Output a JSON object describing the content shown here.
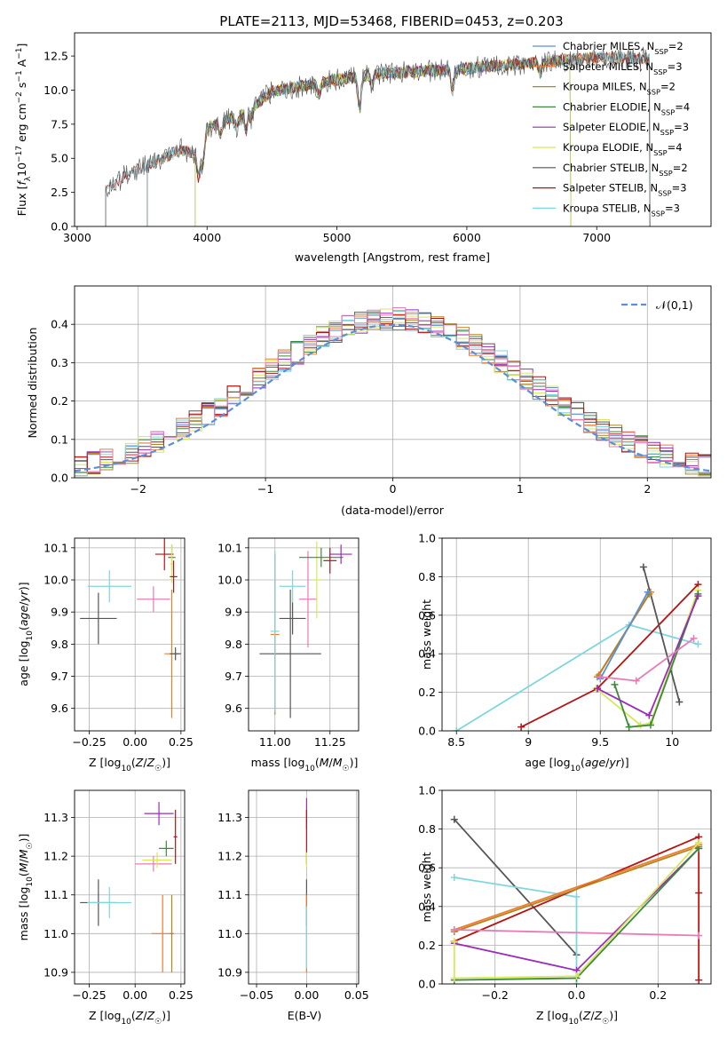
{
  "figure": {
    "title": "PLATE=2113, MJD=53468, FIBERID=0453, z=0.203"
  },
  "colors": {
    "chabrier_miles": "#5b8fd8",
    "salpeter_miles": "#f07b2c",
    "kroupa_miles": "#b5841e",
    "chabrier_elodie": "#3b8a3b",
    "salpeter_elodie": "#9a2bbd",
    "kroupa_elodie": "#d6e85a",
    "chabrier_stelib": "#555555",
    "salpeter_stelib": "#b41414",
    "kroupa_stelib": "#7fd6dc",
    "pink": "#e77bb8",
    "grid": "#b0b0b0",
    "normal_curve": "#5b8fd8"
  },
  "chart_data": [
    {
      "id": "spectrum",
      "type": "line",
      "xlabel": "wavelength [Angstrom, rest frame]",
      "xlim": [
        2980,
        7880
      ],
      "ylim": [
        0,
        14.2
      ],
      "xticks": [
        3000,
        4000,
        5000,
        6000,
        7000
      ],
      "yticks": [
        0.0,
        2.5,
        5.0,
        7.5,
        10.0,
        12.5
      ],
      "grid": false,
      "legend_position": "right",
      "legend": [
        {
          "series": "chabrier_miles",
          "label": "Chabrier MILES, N",
          "sub": "SSP",
          "tail": "=2"
        },
        {
          "series": "salpeter_miles",
          "label": "Salpeter MILES, N",
          "sub": "SSP",
          "tail": "=3"
        },
        {
          "series": "kroupa_miles",
          "label": "Kroupa MILES, N",
          "sub": "SSP",
          "tail": "=2"
        },
        {
          "series": "chabrier_elodie",
          "label": "Chabrier ELODIE, N",
          "sub": "SSP",
          "tail": "=4"
        },
        {
          "series": "salpeter_elodie",
          "label": "Salpeter ELODIE, N",
          "sub": "SSP",
          "tail": "=3"
        },
        {
          "series": "kroupa_elodie",
          "label": "Kroupa ELODIE, N",
          "sub": "SSP",
          "tail": "=4"
        },
        {
          "series": "chabrier_stelib",
          "label": "Chabrier STELIB, N",
          "sub": "SSP",
          "tail": "=2"
        },
        {
          "series": "salpeter_stelib",
          "label": "Salpeter STELIB, N",
          "sub": "SSP",
          "tail": "=3"
        },
        {
          "series": "kroupa_stelib",
          "label": "Kroupa STELIB, N",
          "sub": "SSP",
          "tail": "=3"
        }
      ],
      "continuum": [
        [
          3200,
          2.6
        ],
        [
          3400,
          3.9
        ],
        [
          3600,
          4.8
        ],
        [
          3800,
          5.6
        ],
        [
          3950,
          5.2
        ],
        [
          4000,
          7.2
        ],
        [
          4300,
          8.4
        ],
        [
          4500,
          9.9
        ],
        [
          4900,
          10.6
        ],
        [
          5300,
          11.2
        ],
        [
          5900,
          11.5
        ],
        [
          6500,
          12.0
        ],
        [
          7000,
          12.4
        ],
        [
          7500,
          12.3
        ],
        [
          7880,
          12.2
        ]
      ],
      "dips": [
        [
          3934,
          1.6
        ],
        [
          3968,
          1.3
        ],
        [
          4102,
          0.8
        ],
        [
          4227,
          0.8
        ],
        [
          4300,
          1.4
        ],
        [
          4340,
          0.8
        ],
        [
          4861,
          0.9
        ],
        [
          5175,
          2.4
        ],
        [
          5270,
          0.8
        ],
        [
          5890,
          1.5
        ],
        [
          6563,
          0.8
        ]
      ],
      "series_extent": {
        "chabrier_miles": [
          3540,
          7410
        ],
        "salpeter_miles": [
          3540,
          7410
        ],
        "kroupa_miles": [
          3540,
          7410
        ],
        "chabrier_elodie": [
          3910,
          6800
        ],
        "salpeter_elodie": [
          3910,
          6800
        ],
        "kroupa_elodie": [
          3910,
          6800
        ],
        "chabrier_stelib": [
          3220,
          7410
        ],
        "salpeter_stelib": [
          3220,
          7410
        ],
        "kroupa_stelib": [
          3220,
          7410
        ]
      },
      "y_label_parts": [
        "Flux [f",
        "λ",
        "10",
        "−17",
        " erg cm",
        "−2",
        " s",
        "−1",
        " A",
        "−1",
        "]"
      ]
    },
    {
      "id": "residuals",
      "type": "histogram",
      "xlabel": "(data-model)/error",
      "ylabel": "Normed distribution",
      "xlim": [
        -2.5,
        2.5
      ],
      "ylim": [
        0,
        0.5
      ],
      "xticks": [
        -2,
        -1,
        0,
        1,
        2
      ],
      "xtick_labels": [
        "−2",
        "−1",
        "0",
        "1",
        "2"
      ],
      "yticks": [
        0.0,
        0.1,
        0.2,
        0.3,
        0.4
      ],
      "grid": true,
      "bin_width": 0.1,
      "legend_label": "𝒩(0,1)",
      "legend_position": "top-right",
      "normal": {
        "mean": 0,
        "sigma": 1
      }
    },
    {
      "id": "age_vs_Z",
      "type": "errorbar",
      "xlabel": "Z [log10(Z/Z☉)]",
      "ylabel": "age [log10(age/yr)]",
      "xlim": [
        -0.33,
        0.27
      ],
      "ylim": [
        9.53,
        10.13
      ],
      "xticks": [
        -0.25,
        0.0,
        0.25
      ],
      "xtick_labels": [
        "−0.25",
        "0.00",
        "0.25"
      ],
      "yticks": [
        9.6,
        9.7,
        9.8,
        9.9,
        10.0,
        10.1
      ],
      "grid": true,
      "points": [
        {
          "c": "chabrier_stelib",
          "x": -0.2,
          "xerr": 0.1,
          "y": 9.88,
          "yerr": 0.08
        },
        {
          "c": "kroupa_stelib",
          "x": -0.14,
          "xerr": 0.12,
          "y": 9.98,
          "yerr": 0.05
        },
        {
          "c": "pink",
          "x": 0.1,
          "xerr": 0.09,
          "y": 9.94,
          "yerr": 0.04
        },
        {
          "c": "salpeter_stelib",
          "x": 0.16,
          "xerr": 0.05,
          "y": 10.08,
          "yerr": 0.05
        },
        {
          "c": "chabrier_elodie",
          "x": 0.2,
          "xerr": 0.02,
          "y": 10.07,
          "yerr": 0.04
        },
        {
          "c": "kroupa_elodie",
          "x": 0.2,
          "xerr": 0.01,
          "y": 10.05,
          "yerr": 0.06
        },
        {
          "c": "salpeter_miles",
          "x": 0.2,
          "xerr": 0.04,
          "y": 9.77,
          "yerr": 0.2
        },
        {
          "c": "chabrier_stelib",
          "x": 0.22,
          "xerr": 0.03,
          "y": 9.77,
          "yerr": 0.02
        },
        {
          "c": "salpeter_stelib",
          "x": 0.21,
          "xerr": 0.02,
          "y": 10.01,
          "yerr": 0.05
        }
      ]
    },
    {
      "id": "age_vs_mass",
      "type": "errorbar",
      "xlabel": "mass [log10(M/M☉)]",
      "xlim": [
        10.88,
        11.38
      ],
      "ylim": [
        9.53,
        10.13
      ],
      "xticks": [
        11.0,
        11.25
      ],
      "xtick_labels": [
        "11.00",
        "11.25"
      ],
      "yticks": [
        9.6,
        9.7,
        9.8,
        9.9,
        10.0,
        10.1
      ],
      "grid": true,
      "points": [
        {
          "c": "chabrier_stelib",
          "x": 11.08,
          "xerr": 0.06,
          "y": 9.88,
          "yerr": 0.05
        },
        {
          "c": "kroupa_stelib",
          "x": 11.08,
          "xerr": 0.06,
          "y": 9.98,
          "yerr": 0.05
        },
        {
          "c": "salpeter_miles",
          "x": 11.0,
          "xerr": 0.02,
          "y": 9.83,
          "yerr": 0.25
        },
        {
          "c": "chabrier_stelib",
          "x": 11.07,
          "xerr": 0.14,
          "y": 9.77,
          "yerr": 0.2
        },
        {
          "c": "kroupa_stelib",
          "x": 11.0,
          "xerr": 0.02,
          "y": 9.84,
          "yerr": 0.25
        },
        {
          "c": "pink",
          "x": 11.15,
          "xerr": 0.04,
          "y": 9.94,
          "yerr": 0.15
        },
        {
          "c": "kroupa_elodie",
          "x": 11.19,
          "xerr": 0.02,
          "y": 10.0,
          "yerr": 0.12
        },
        {
          "c": "chabrier_elodie",
          "x": 11.21,
          "xerr": 0.1,
          "y": 10.07,
          "yerr": 0.03
        },
        {
          "c": "salpeter_elodie",
          "x": 11.3,
          "xerr": 0.05,
          "y": 10.08,
          "yerr": 0.03
        },
        {
          "c": "salpeter_stelib",
          "x": 11.25,
          "xerr": 0.03,
          "y": 10.06,
          "yerr": 0.04
        }
      ]
    },
    {
      "id": "mass_vs_Z",
      "type": "errorbar",
      "xlabel": "Z [log10(Z/Z☉)]",
      "ylabel": "mass [log10(M/M☉)]",
      "xlim": [
        -0.33,
        0.27
      ],
      "ylim": [
        10.87,
        11.37
      ],
      "xticks": [
        -0.25,
        0.0,
        0.25
      ],
      "xtick_labels": [
        "−0.25",
        "0.00",
        "0.25"
      ],
      "yticks": [
        10.9,
        11.0,
        11.1,
        11.2,
        11.3
      ],
      "grid": true,
      "points": [
        {
          "c": "chabrier_stelib",
          "x": -0.2,
          "xerr": 0.1,
          "y": 11.08,
          "yerr": 0.06
        },
        {
          "c": "kroupa_stelib",
          "x": -0.14,
          "xerr": 0.12,
          "y": 11.08,
          "yerr": 0.04
        },
        {
          "c": "pink",
          "x": 0.1,
          "xerr": 0.1,
          "y": 11.18,
          "yerr": 0.02
        },
        {
          "c": "kroupa_elodie",
          "x": 0.12,
          "xerr": 0.08,
          "y": 11.19,
          "yerr": 0.02
        },
        {
          "c": "salpeter_elodie",
          "x": 0.13,
          "xerr": 0.08,
          "y": 11.31,
          "yerr": 0.03
        },
        {
          "c": "chabrier_elodie",
          "x": 0.17,
          "xerr": 0.04,
          "y": 11.22,
          "yerr": 0.02
        },
        {
          "c": "salpeter_miles",
          "x": 0.15,
          "xerr": 0.06,
          "y": 11.0,
          "yerr": 0.1
        },
        {
          "c": "salpeter_stelib",
          "x": 0.22,
          "xerr": 0.01,
          "y": 11.25,
          "yerr": 0.07
        },
        {
          "c": "kroupa_miles",
          "x": 0.2,
          "xerr": 0.01,
          "y": 11.0,
          "yerr": 0.1
        }
      ]
    },
    {
      "id": "mass_vs_ebv",
      "type": "errorbar",
      "xlabel": "E(B-V)",
      "xlim": [
        -0.058,
        0.052
      ],
      "ylim": [
        10.87,
        11.37
      ],
      "xticks": [
        -0.05,
        0.0,
        0.05
      ],
      "xtick_labels": [
        "−0.05",
        "0.00",
        "0.05"
      ],
      "yticks": [
        10.9,
        11.0,
        11.1,
        11.2,
        11.3
      ],
      "grid": true,
      "points": [
        {
          "c": "salpeter_elodie",
          "x": 0.0,
          "xerr": 0.0,
          "y": 11.31,
          "yerr": 0.04
        },
        {
          "c": "salpeter_stelib",
          "x": 0.0,
          "xerr": 0.0,
          "y": 11.25,
          "yerr": 0.07
        },
        {
          "c": "kroupa_elodie",
          "x": 0.0,
          "xerr": 0.0,
          "y": 11.19,
          "yerr": 0.02
        },
        {
          "c": "chabrier_stelib",
          "x": 0.0,
          "xerr": 0.0,
          "y": 11.08,
          "yerr": 0.06
        },
        {
          "c": "salpeter_miles",
          "x": 0.0,
          "xerr": 0.0,
          "y": 11.0,
          "yerr": 0.1
        },
        {
          "c": "kroupa_stelib",
          "x": 0.0,
          "xerr": 0.0,
          "y": 10.99,
          "yerr": 0.08
        }
      ]
    },
    {
      "id": "weight_vs_age",
      "type": "line",
      "xlabel": "age [log10(age/yr)]",
      "ylabel": "mass weight",
      "xlim": [
        8.4,
        10.27
      ],
      "ylim": [
        0,
        1.0
      ],
      "xticks": [
        8.5,
        9.0,
        9.5,
        10.0
      ],
      "yticks": [
        0.0,
        0.2,
        0.4,
        0.6,
        0.8,
        1.0
      ],
      "grid": true,
      "series": [
        {
          "c": "kroupa_stelib",
          "points": [
            [
              8.5,
              0.0
            ],
            [
              9.7,
              0.55
            ],
            [
              10.18,
              0.45
            ]
          ]
        },
        {
          "c": "salpeter_stelib",
          "points": [
            [
              8.95,
              0.02
            ],
            [
              9.48,
              0.22
            ],
            [
              10.18,
              0.76
            ]
          ]
        },
        {
          "c": "chabrier_stelib",
          "points": [
            [
              9.8,
              0.85
            ],
            [
              10.05,
              0.15
            ]
          ]
        },
        {
          "c": "salpeter_miles",
          "points": [
            [
              9.49,
              0.29
            ],
            [
              9.85,
              0.72
            ]
          ]
        },
        {
          "c": "kroupa_miles",
          "points": [
            [
              9.48,
              0.28
            ],
            [
              9.84,
              0.71
            ]
          ]
        },
        {
          "c": "chabrier_miles",
          "points": [
            [
              9.5,
              0.27
            ],
            [
              9.83,
              0.72
            ]
          ]
        },
        {
          "c": "kroupa_elodie",
          "points": [
            [
              9.47,
              0.22
            ],
            [
              9.78,
              0.03
            ],
            [
              9.85,
              0.04
            ],
            [
              10.18,
              0.73
            ]
          ]
        },
        {
          "c": "chabrier_elodie",
          "points": [
            [
              9.6,
              0.24
            ],
            [
              9.7,
              0.02
            ],
            [
              9.85,
              0.03
            ],
            [
              10.18,
              0.71
            ]
          ]
        },
        {
          "c": "salpeter_elodie",
          "points": [
            [
              9.48,
              0.22
            ],
            [
              9.84,
              0.08
            ],
            [
              10.18,
              0.7
            ]
          ]
        },
        {
          "c": "pink",
          "points": [
            [
              9.5,
              0.28
            ],
            [
              9.75,
              0.26
            ],
            [
              10.15,
              0.48
            ]
          ]
        }
      ]
    },
    {
      "id": "weight_vs_Z",
      "type": "line",
      "xlabel": "Z [log10(Z/Z☉)]",
      "ylabel": "mass weight",
      "xlim": [
        -0.33,
        0.33
      ],
      "ylim": [
        0,
        1.0
      ],
      "xticks": [
        -0.2,
        0.0,
        0.2
      ],
      "xtick_labels": [
        "−0.2",
        "0.0",
        "0.2"
      ],
      "yticks": [
        0.0,
        0.2,
        0.4,
        0.6,
        0.8,
        1.0
      ],
      "grid": true,
      "series": [
        {
          "c": "chabrier_stelib",
          "points": [
            [
              -0.3,
              0.85
            ],
            [
              0.0,
              0.15
            ]
          ]
        },
        {
          "c": "kroupa_stelib",
          "points": [
            [
              -0.3,
              0.55
            ],
            [
              0.0,
              0.45
            ],
            [
              0.0,
              0.0
            ]
          ]
        },
        {
          "c": "salpeter_stelib",
          "points": [
            [
              -0.3,
              0.22
            ],
            [
              0.3,
              0.76
            ],
            [
              0.3,
              0.47
            ],
            [
              0.3,
              0.02
            ]
          ]
        },
        {
          "c": "salpeter_miles",
          "points": [
            [
              -0.3,
              0.28
            ],
            [
              0.3,
              0.72
            ]
          ]
        },
        {
          "c": "kroupa_miles",
          "points": [
            [
              -0.3,
              0.27
            ],
            [
              0.3,
              0.71
            ]
          ]
        },
        {
          "c": "pink",
          "points": [
            [
              -0.3,
              0.28
            ],
            [
              0.3,
              0.25
            ]
          ]
        },
        {
          "c": "salpeter_elodie",
          "points": [
            [
              -0.3,
              0.21
            ],
            [
              0.0,
              0.07
            ],
            [
              0.3,
              0.7
            ]
          ]
        },
        {
          "c": "chabrier_elodie",
          "points": [
            [
              -0.3,
              0.02
            ],
            [
              0.0,
              0.03
            ],
            [
              0.3,
              0.7
            ]
          ]
        },
        {
          "c": "kroupa_elodie",
          "points": [
            [
              -0.3,
              0.22
            ],
            [
              -0.3,
              0.03
            ],
            [
              0.0,
              0.04
            ],
            [
              0.3,
              0.73
            ]
          ]
        }
      ]
    }
  ]
}
